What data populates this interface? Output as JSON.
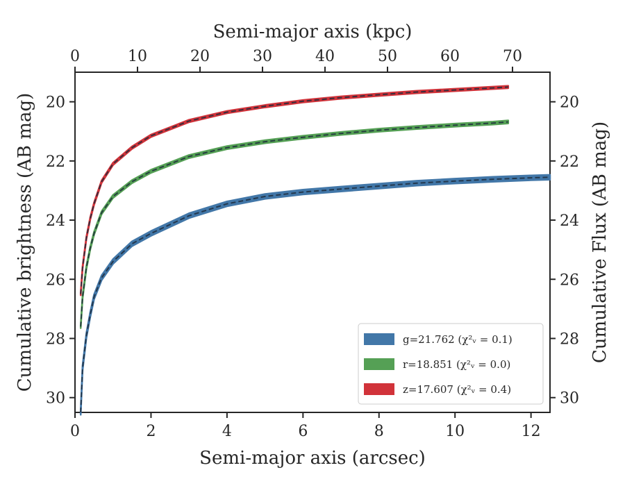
{
  "chart_data": {
    "type": "line",
    "title": "",
    "xlabel": "Semi-major axis (arcsec)",
    "xlabel_top": "Semi-major axis (kpc)",
    "ylabel": "Cumulative brightness (AB mag)",
    "ylabel_right": "Cumulative Flux (AB mag)",
    "xlim": [
      0,
      12.5
    ],
    "ylim": [
      30.5,
      19.0
    ],
    "ylim_note": "inverted magnitude axis (brighter upward)",
    "x_top_lim_kpc": [
      0,
      76.0
    ],
    "x_ticks": [
      "0",
      "2",
      "4",
      "6",
      "8",
      "10",
      "12"
    ],
    "x_top_ticks": [
      "0",
      "10",
      "20",
      "30",
      "40",
      "50",
      "60",
      "70"
    ],
    "y_ticks": [
      "20",
      "22",
      "24",
      "26",
      "28",
      "30"
    ],
    "grid": false,
    "legend_position": "lower-right",
    "series": [
      {
        "name": "g=21.762 ($\\chi^2_\\nu = 0.1$)",
        "legend_label": "g=21.762 (χ²ᵥ = 0.1)",
        "color": "#4277a8",
        "band_halfwidth_mag": 0.08,
        "x": [
          0.15,
          0.2,
          0.3,
          0.4,
          0.5,
          0.7,
          1.0,
          1.5,
          2.0,
          3.0,
          4.0,
          5.0,
          6.0,
          7.0,
          8.0,
          9.0,
          10.0,
          11.0,
          12.0,
          12.5
        ],
        "y": [
          30.5,
          29.0,
          27.9,
          27.2,
          26.6,
          25.95,
          25.4,
          24.8,
          24.45,
          23.85,
          23.45,
          23.2,
          23.05,
          22.95,
          22.85,
          22.75,
          22.68,
          22.62,
          22.57,
          22.55
        ]
      },
      {
        "name": "r=18.851 ($\\chi^2_\\nu = 0.0$)",
        "legend_label": "r=18.851 (χ²ᵥ = 0.0)",
        "color": "#55a055",
        "band_halfwidth_mag": 0.05,
        "x": [
          0.15,
          0.2,
          0.3,
          0.4,
          0.5,
          0.7,
          1.0,
          1.5,
          2.0,
          3.0,
          4.0,
          5.0,
          6.0,
          7.0,
          8.0,
          9.0,
          10.0,
          11.0,
          11.4
        ],
        "y": [
          27.6,
          26.6,
          25.6,
          24.95,
          24.45,
          23.75,
          23.2,
          22.7,
          22.35,
          21.85,
          21.55,
          21.35,
          21.2,
          21.07,
          20.96,
          20.87,
          20.79,
          20.72,
          20.68
        ]
      },
      {
        "name": "z=17.607 ($\\chi^2_\\nu = 0.4$)",
        "legend_label": "z=17.607 (χ²ᵥ = 0.4)",
        "color": "#d1333a",
        "band_halfwidth_mag": 0.04,
        "x": [
          0.15,
          0.2,
          0.3,
          0.4,
          0.5,
          0.7,
          1.0,
          1.5,
          2.0,
          3.0,
          4.0,
          5.0,
          6.0,
          7.0,
          8.0,
          9.0,
          10.0,
          11.0,
          11.4
        ],
        "y": [
          26.5,
          25.6,
          24.6,
          23.95,
          23.45,
          22.7,
          22.1,
          21.55,
          21.15,
          20.65,
          20.35,
          20.15,
          19.98,
          19.86,
          19.76,
          19.67,
          19.6,
          19.53,
          19.5
        ]
      }
    ],
    "model_line": {
      "color": "#1f2d3d",
      "style": "dashed"
    }
  }
}
